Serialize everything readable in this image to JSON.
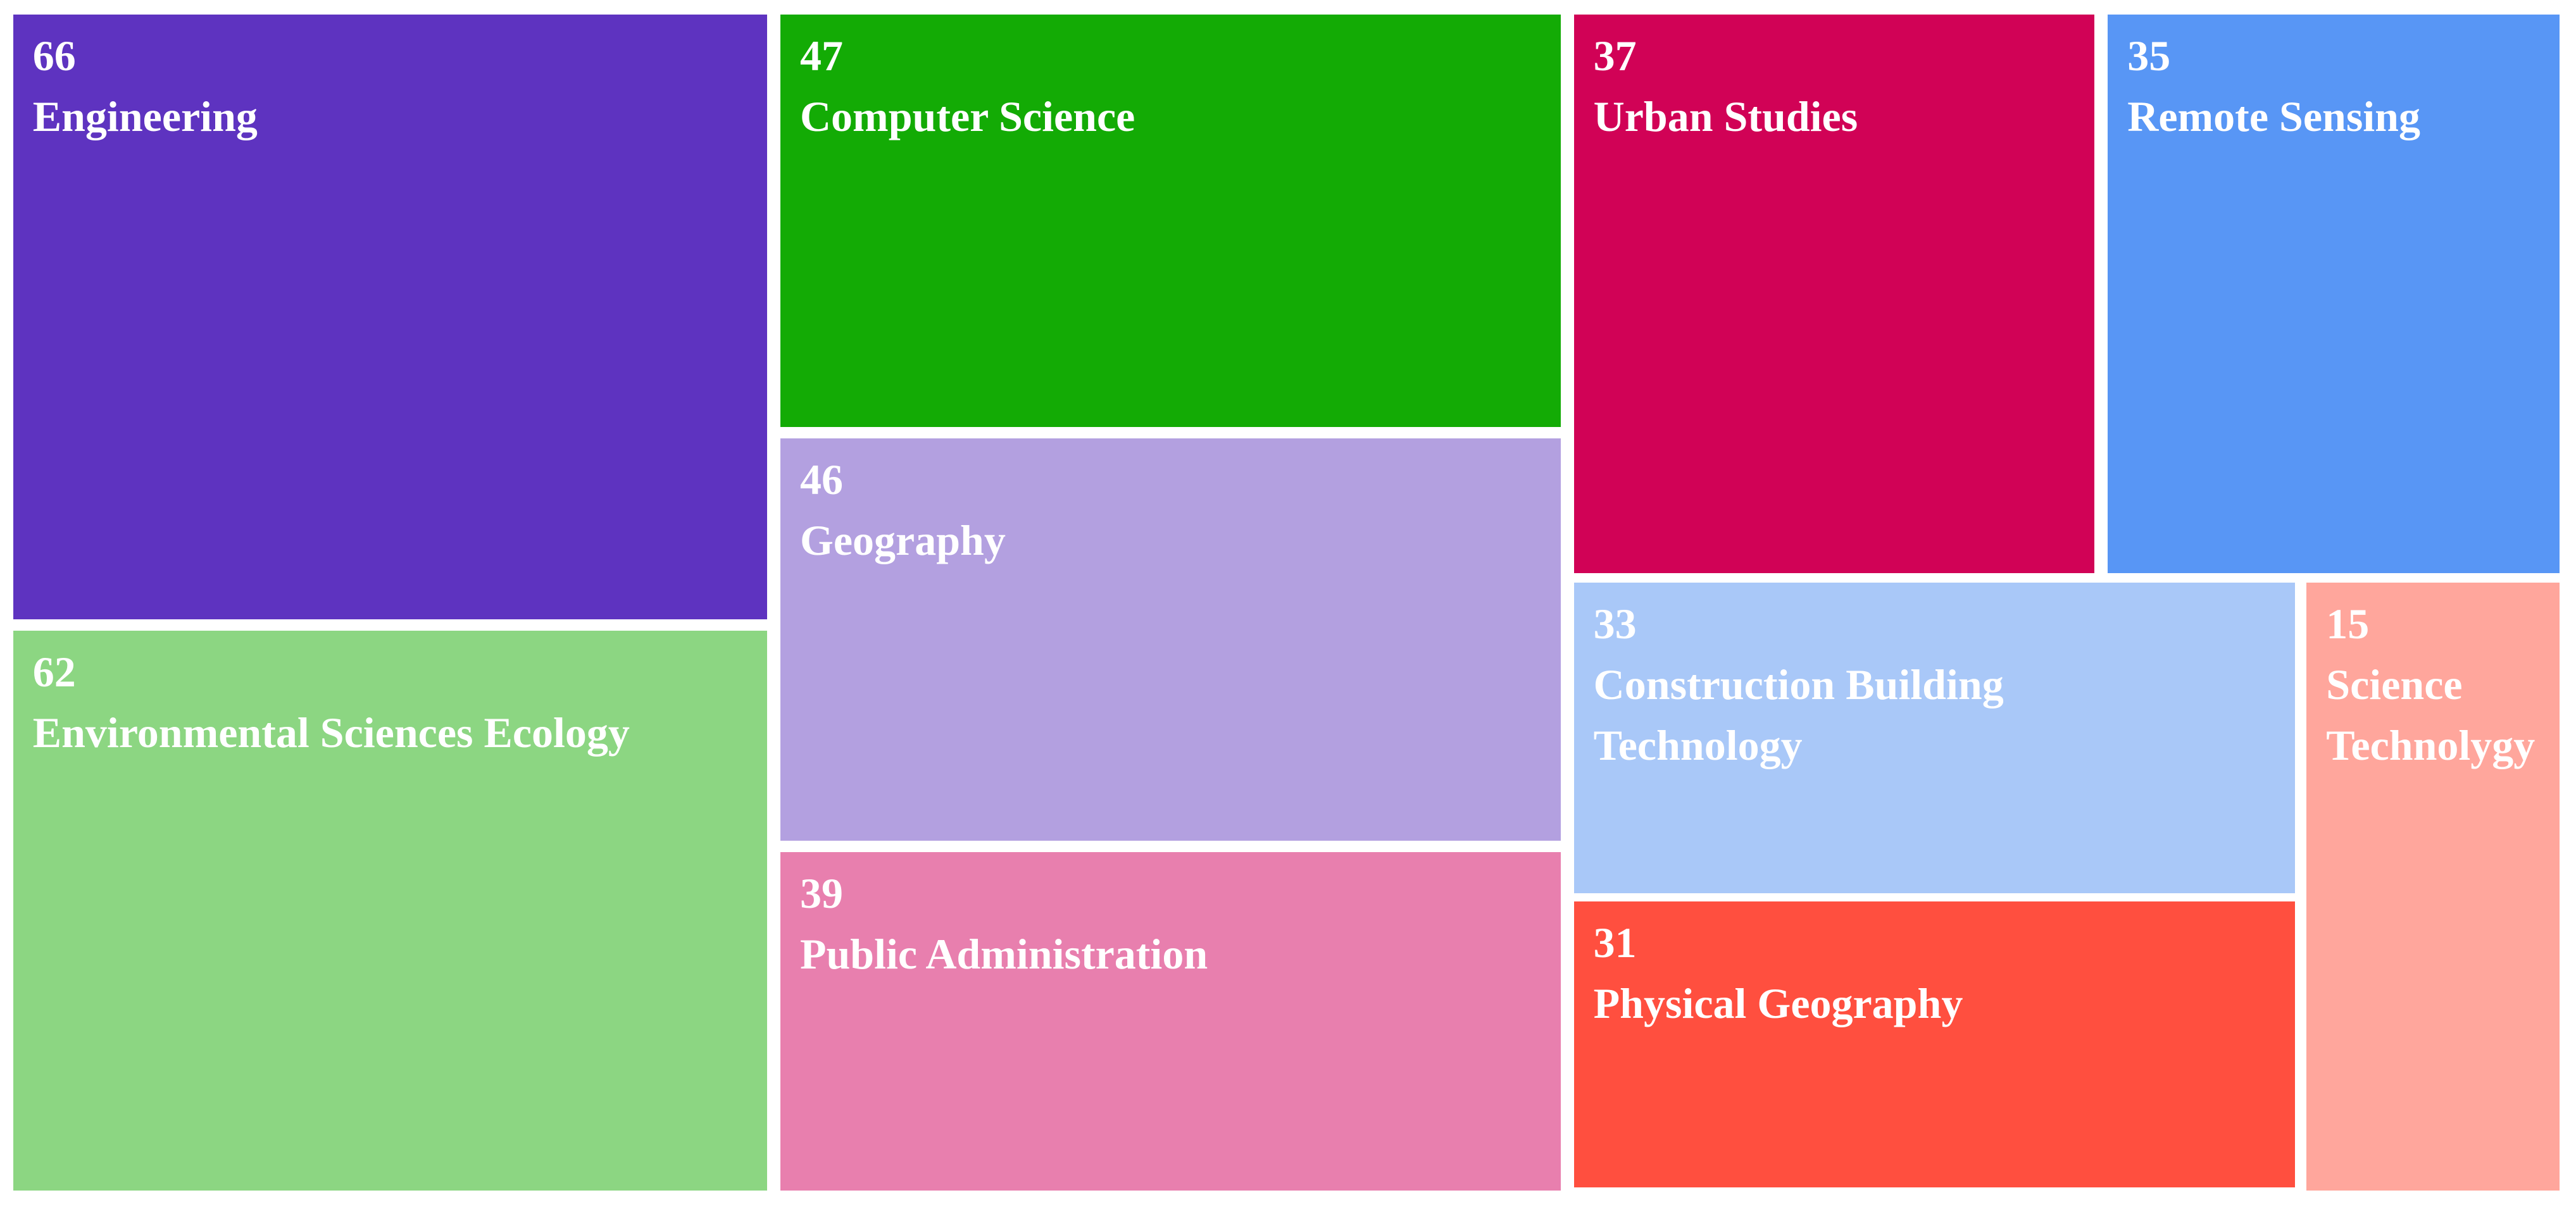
{
  "chart_data": {
    "type": "treemap",
    "labels": [
      "Engineering",
      "Environmental Sciences Ecology",
      "Computer Science",
      "Geography",
      "Public Administration",
      "Urban Studies",
      "Remote Sensing",
      "Construction Building Technology",
      "Physical Geography",
      "Science Technolygy"
    ],
    "values": [
      66,
      62,
      47,
      46,
      39,
      37,
      35,
      33,
      31,
      15
    ],
    "colors": [
      "#5e33c0",
      "#8cd682",
      "#13ab05",
      "#b3a0e0",
      "#e87fae",
      "#d10256",
      "#5896f5",
      "#a9c8f8",
      "#ff4f3f",
      "#ffa69c"
    ],
    "text_color": "#ffffff"
  }
}
